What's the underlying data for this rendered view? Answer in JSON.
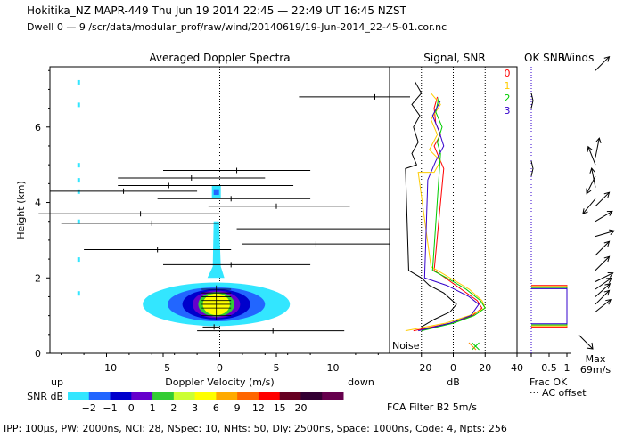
{
  "header": {
    "title": "Hokitika_NZ   MAPR-449   Thu Jun 19 2014 22:45 — 22:49 UT 16:45 NZST",
    "subtitle": "Dwell   0 —   9    /scr/data/modular_prof/raw/wind/20140619/19-Jun-2014_22-45-01.cor.nc"
  },
  "footer": {
    "params": "IPP: 100µs,   PW: 2000ns,   NCI:   28,   NSpec: 10,  NHts: 50,   Dly: 2500ns,    Space: 1000ns,   Code: 4,   Npts: 256",
    "fca": "FCA Filter B2   5m/s"
  },
  "colors": {
    "snr_bins": [
      "#33e6ff",
      "#2266ff",
      "#0000cc",
      "#6600cc",
      "#33cc33",
      "#ccff33",
      "#ffff00",
      "#ffaa00",
      "#ff6600",
      "#ff0000",
      "#660022",
      "#330033",
      "#66004d"
    ],
    "series": [
      "#ff0000",
      "#ffcc00",
      "#00cc00",
      "#3300cc"
    ]
  },
  "chart_data": [
    {
      "type": "heatmap",
      "title": "Averaged Doppler Spectra",
      "xlabel": "Doppler Velocity (m/s)",
      "ylabel": "Height (km)",
      "xlim": [
        -15,
        15
      ],
      "ylim": [
        0,
        7.6
      ],
      "x_ticks": [
        -10,
        -5,
        0,
        5,
        10
      ],
      "y_ticks": [
        0,
        2,
        4,
        6
      ],
      "x_left_label": "up",
      "x_right_label": "down",
      "colorbar": {
        "label": "SNR dB",
        "ticks": [
          "−2",
          "−1",
          "0",
          "1",
          "2",
          "3",
          "6",
          "9",
          "12",
          "15",
          "20"
        ]
      },
      "spectral_blob": {
        "center_velocity": -0.3,
        "center_height": 1.3,
        "core_halfwidth_velocity": 1.2
      },
      "velocity_bars": [
        {
          "height": 6.8,
          "v_min": 7.0,
          "v_max": 15,
          "v_mean": 13.7
        },
        {
          "height": 4.85,
          "v_min": -5,
          "v_max": 8,
          "v_mean": 1.5
        },
        {
          "height": 4.65,
          "v_min": -9,
          "v_max": 4,
          "v_mean": -2.5
        },
        {
          "height": 4.45,
          "v_min": -9,
          "v_max": 6.5,
          "v_mean": -4.5
        },
        {
          "height": 4.3,
          "v_min": -15,
          "v_max": -2,
          "v_mean": -8.5
        },
        {
          "height": 4.1,
          "v_min": -5.5,
          "v_max": 8,
          "v_mean": 1
        },
        {
          "height": 3.9,
          "v_min": -1,
          "v_max": 11.5,
          "v_mean": 5
        },
        {
          "height": 3.7,
          "v_min": -16,
          "v_max": 0,
          "v_mean": -7
        },
        {
          "height": 3.45,
          "v_min": -14,
          "v_max": 0,
          "v_mean": -6
        },
        {
          "height": 3.3,
          "v_min": 1.5,
          "v_max": 15,
          "v_mean": 10
        },
        {
          "height": 2.9,
          "v_min": 2,
          "v_max": 15,
          "v_mean": 8.5
        },
        {
          "height": 2.75,
          "v_min": -12,
          "v_max": 1,
          "v_mean": -5.5
        },
        {
          "height": 2.35,
          "v_min": -5,
          "v_max": 8,
          "v_mean": 1
        },
        {
          "height": 0.7,
          "v_min": -1.5,
          "v_max": 0,
          "v_mean": -0.5
        },
        {
          "height": 0.6,
          "v_min": -2,
          "v_max": 11,
          "v_mean": 4.7
        }
      ],
      "noise_speckles": [
        {
          "velocity": -12.5,
          "height": 7.2
        },
        {
          "velocity": -12.5,
          "height": 6.6
        },
        {
          "velocity": -12.5,
          "height": 5.0
        },
        {
          "velocity": -12.5,
          "height": 4.6
        },
        {
          "velocity": -12.5,
          "height": 4.3
        },
        {
          "velocity": -12.5,
          "height": 3.5
        },
        {
          "velocity": -12.5,
          "height": 2.5
        },
        {
          "velocity": -12.5,
          "height": 1.6
        }
      ]
    },
    {
      "type": "line",
      "title": "Signal, SNR",
      "xlabel": "dB",
      "xlim": [
        -40,
        40
      ],
      "x_ticks": [
        -20,
        0,
        20,
        40
      ],
      "ylim": [
        0,
        7.6
      ],
      "legend": [
        "0",
        "1",
        "2",
        "3"
      ],
      "noise_label": "Noise",
      "series": [
        {
          "name": "0",
          "color": "#ff0000",
          "points": [
            [
              -10,
              6.8
            ],
            [
              -12,
              6.5
            ],
            [
              -11,
              6.1
            ],
            [
              -8,
              5.8
            ],
            [
              -12,
              5.5
            ],
            [
              -9,
              5.2
            ],
            [
              -6,
              4.9
            ],
            [
              -12,
              2.2
            ],
            [
              -5,
              2.0
            ],
            [
              5,
              1.7
            ],
            [
              15,
              1.4
            ],
            [
              18,
              1.2
            ],
            [
              12,
              1.0
            ],
            [
              -2,
              0.8
            ],
            [
              -25,
              0.6
            ]
          ]
        },
        {
          "name": "1",
          "color": "#ffcc00",
          "points": [
            [
              -14,
              6.9
            ],
            [
              -8,
              6.6
            ],
            [
              -14,
              6.2
            ],
            [
              -10,
              5.8
            ],
            [
              -15,
              5.4
            ],
            [
              -8,
              5.1
            ],
            [
              -12,
              4.8
            ],
            [
              -22,
              4.8
            ],
            [
              -14,
              2.3
            ],
            [
              -2,
              2.0
            ],
            [
              10,
              1.7
            ],
            [
              18,
              1.4
            ],
            [
              20,
              1.2
            ],
            [
              10,
              1.0
            ],
            [
              -5,
              0.8
            ],
            [
              -30,
              0.6
            ]
          ]
        },
        {
          "name": "2",
          "color": "#00cc00",
          "points": [
            [
              -9,
              6.8
            ],
            [
              -11,
              6.4
            ],
            [
              -7,
              6.0
            ],
            [
              -10,
              5.6
            ],
            [
              -8,
              5.3
            ],
            [
              -13,
              2.2
            ],
            [
              -4,
              2.0
            ],
            [
              8,
              1.7
            ],
            [
              17,
              1.4
            ],
            [
              20,
              1.2
            ],
            [
              13,
              1.0
            ],
            [
              0,
              0.8
            ],
            [
              -20,
              0.6
            ]
          ]
        },
        {
          "name": "3",
          "color": "#3300cc",
          "points": [
            [
              -8,
              6.7
            ],
            [
              -13,
              6.3
            ],
            [
              -9,
              5.9
            ],
            [
              -6,
              5.5
            ],
            [
              -11,
              5.1
            ],
            [
              -16,
              4.6
            ],
            [
              -18,
              2.0
            ],
            [
              -4,
              1.8
            ],
            [
              10,
              1.5
            ],
            [
              16,
              1.3
            ],
            [
              11,
              1.0
            ],
            [
              -2,
              0.8
            ],
            [
              -22,
              0.6
            ]
          ]
        },
        {
          "name": "Signal",
          "color": "#000000",
          "points": [
            [
              -24,
              7.2
            ],
            [
              -20,
              6.9
            ],
            [
              -26,
              6.6
            ],
            [
              -21,
              6.3
            ],
            [
              -25,
              6.0
            ],
            [
              -22,
              5.6
            ],
            [
              -26,
              5.3
            ],
            [
              -23,
              5.0
            ],
            [
              -30,
              4.9
            ],
            [
              -28,
              2.2
            ],
            [
              -20,
              2.0
            ],
            [
              -15,
              1.8
            ],
            [
              -6,
              1.6
            ],
            [
              2,
              1.3
            ],
            [
              -2,
              1.1
            ],
            [
              -12,
              0.9
            ],
            [
              -20,
              0.7
            ]
          ]
        }
      ]
    },
    {
      "type": "line",
      "title": "OK SNR",
      "xlabel": "Frac OK",
      "xlim": [
        0,
        1
      ],
      "x_ticks": [
        "0.5",
        "1"
      ],
      "ylim": [
        0,
        7.6
      ],
      "legend": [
        "··· AC offset"
      ],
      "frac_ok_bounds": {
        "top": 1.8,
        "bottom": 0.7
      }
    },
    {
      "type": "scatter",
      "title": "Winds",
      "xlabel": "Max",
      "max_speed_label": "69m/s",
      "ylim": [
        0,
        7.6
      ],
      "wind_arrows": [
        {
          "height": 7.5,
          "dx": 1,
          "dy": 1
        },
        {
          "height": 5.2,
          "dx": 0.2,
          "dy": 1
        },
        {
          "height": 5.0,
          "dx": -0.4,
          "dy": 1
        },
        {
          "height": 4.7,
          "dx": -0.5,
          "dy": -1
        },
        {
          "height": 4.4,
          "dx": -0.2,
          "dy": 1
        },
        {
          "height": 4.1,
          "dx": -0.5,
          "dy": -0.6
        },
        {
          "height": 3.9,
          "dx": 1,
          "dy": 1
        },
        {
          "height": 3.5,
          "dx": 1,
          "dy": 0.6
        },
        {
          "height": 3.1,
          "dx": 1,
          "dy": 0.3
        },
        {
          "height": 2.6,
          "dx": 1,
          "dy": 1
        },
        {
          "height": 2.2,
          "dx": 1,
          "dy": 1
        },
        {
          "height": 1.9,
          "dx": 1,
          "dy": 0.5
        },
        {
          "height": 1.7,
          "dx": 1,
          "dy": 0.7
        },
        {
          "height": 1.5,
          "dx": 1,
          "dy": 0.9
        },
        {
          "height": 1.3,
          "dx": 1,
          "dy": 1
        },
        {
          "height": 1.1,
          "dx": 1,
          "dy": 0.8
        }
      ]
    }
  ]
}
